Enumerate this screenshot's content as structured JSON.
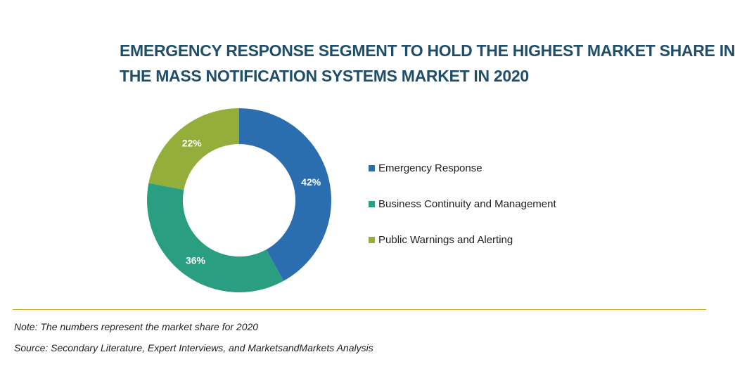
{
  "chart_data": {
    "type": "pie",
    "donut": true,
    "title": "EMERGENCY RESPONSE SEGMENT TO HOLD THE HIGHEST MARKET SHARE IN THE MASS NOTIFICATION SYSTEMS MARKET IN 2020",
    "title_lines": [
      "EMERGENCY RESPONSE SEGMENT TO HOLD THE HIGHEST MARKET SHARE IN",
      "THE MASS NOTIFICATION SYSTEMS MARKET IN 2020"
    ],
    "categories": [
      "Emergency Response",
      "Business Continuity and Management",
      "Public Warnings and Alerting"
    ],
    "values": [
      42,
      36,
      22
    ],
    "data_labels": [
      "42%",
      "36%",
      "22%"
    ],
    "colors": [
      "#2a6eb0",
      "#2a9e80",
      "#93ae3a"
    ],
    "legend_position": "right",
    "start_angle": "top, clockwise"
  },
  "footer": {
    "note": "Note: The numbers represent the market share for 2020",
    "source": "Source: Secondary Literature, Expert Interviews, and MarketsandMarkets Analysis"
  }
}
